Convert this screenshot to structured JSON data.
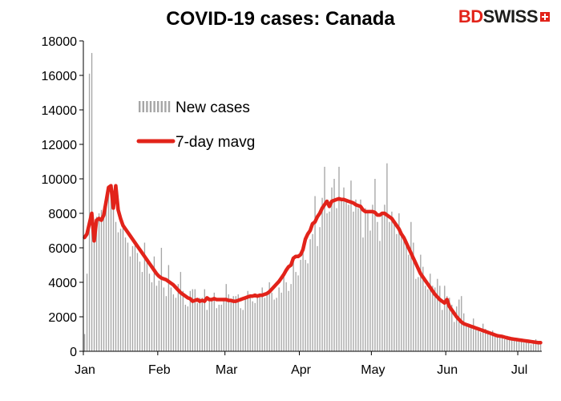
{
  "brand": {
    "part1": "BD",
    "part2": "SWISS"
  },
  "chart_data": {
    "type": "bar",
    "title": "COVID-19 cases: Canada",
    "xlabel": "",
    "ylabel": "",
    "ylim": [
      0,
      18000
    ],
    "yticks": [
      0,
      2000,
      4000,
      6000,
      8000,
      10000,
      12000,
      14000,
      16000,
      18000
    ],
    "xticks": [
      {
        "label": "Jan",
        "day": 0
      },
      {
        "label": "Feb",
        "day": 31
      },
      {
        "label": "Mar",
        "day": 59
      },
      {
        "label": "Apr",
        "day": 90
      },
      {
        "label": "May",
        "day": 120
      },
      {
        "label": "Jun",
        "day": 151
      },
      {
        "label": "Jul",
        "day": 181
      }
    ],
    "grid": false,
    "legend_position": "top-left",
    "series": [
      {
        "name": "New cases",
        "type": "bar",
        "color": "#a6a6a6",
        "values": [
          1000,
          4500,
          16100,
          17300,
          6500,
          7800,
          8000,
          8200,
          8400,
          9000,
          9500,
          9600,
          8200,
          7500,
          6900,
          7100,
          7300,
          6600,
          6300,
          5500,
          6100,
          6200,
          5700,
          5200,
          4600,
          6300,
          5200,
          4500,
          4000,
          5500,
          3800,
          4100,
          6000,
          3700,
          3200,
          5000,
          3700,
          3300,
          3100,
          3900,
          4600,
          3500,
          2700,
          2600,
          3500,
          3600,
          3600,
          2800,
          3100,
          3100,
          3600,
          2400,
          2900,
          3000,
          3400,
          2500,
          2700,
          2700,
          3000,
          3900,
          3300,
          2900,
          3200,
          3200,
          3300,
          2500,
          2400,
          3000,
          3500,
          3200,
          2900,
          2800,
          3100,
          3200,
          3700,
          3100,
          3300,
          4000,
          3400,
          3000,
          3100,
          3700,
          3400,
          4500,
          4000,
          3500,
          3900,
          5400,
          4600,
          4400,
          5300,
          6200,
          5300,
          5100,
          6500,
          6800,
          9000,
          6100,
          7200,
          8900,
          10700,
          8000,
          8100,
          9500,
          10000,
          8300,
          10700,
          8800,
          9500,
          8800,
          8500,
          9900,
          8100,
          8800,
          8300,
          8800,
          6600,
          8300,
          8000,
          7000,
          8500,
          10000,
          7500,
          6400,
          7900,
          8500,
          10900,
          7500,
          8100,
          7500,
          6800,
          8000,
          6900,
          6600,
          6500,
          5600,
          7500,
          6300,
          4200,
          4300,
          5600,
          4900,
          3800,
          3600,
          4500,
          3800,
          3700,
          4200,
          3800,
          2400,
          3800,
          3200,
          3100,
          2700,
          1700,
          2600,
          3000,
          3200,
          2200,
          1600,
          1500,
          1400,
          1900,
          1400,
          1200,
          1100,
          1600,
          1300,
          1100,
          1000,
          1200,
          1000,
          1000,
          900,
          900,
          700,
          900,
          800,
          700,
          700,
          600,
          600,
          700,
          500,
          500,
          600,
          400,
          500,
          700,
          400,
          400
        ]
      },
      {
        "name": "7-day mavg",
        "type": "line",
        "color": "#e2231a",
        "values": [
          6600,
          6800,
          7400,
          8000,
          6400,
          7600,
          7700,
          7600,
          7900,
          8700,
          9500,
          9600,
          8300,
          9600,
          8200,
          7700,
          7300,
          7100,
          6900,
          6700,
          6500,
          6300,
          6100,
          5900,
          5700,
          5500,
          5300,
          5100,
          4900,
          4700,
          4500,
          4350,
          4250,
          4200,
          4150,
          4050,
          3950,
          3850,
          3700,
          3550,
          3400,
          3300,
          3200,
          3100,
          3050,
          2900,
          2950,
          3000,
          2900,
          2950,
          2900,
          3100,
          3000,
          3000,
          3050,
          3000,
          3000,
          3000,
          3000,
          3000,
          2950,
          2950,
          2900,
          2900,
          2950,
          3000,
          3050,
          3100,
          3150,
          3200,
          3200,
          3250,
          3200,
          3250,
          3250,
          3300,
          3350,
          3450,
          3600,
          3750,
          3900,
          4050,
          4250,
          4450,
          4700,
          4900,
          5000,
          5400,
          5500,
          5500,
          5600,
          5900,
          6500,
          6800,
          7000,
          7400,
          7500,
          7800,
          8000,
          8300,
          8500,
          8700,
          8400,
          8700,
          8750,
          8800,
          8850,
          8800,
          8800,
          8750,
          8700,
          8650,
          8600,
          8500,
          8450,
          8400,
          8200,
          8100,
          8100,
          8100,
          8100,
          8050,
          7900,
          7900,
          8000,
          8000,
          7900,
          7800,
          7700,
          7500,
          7300,
          7100,
          6800,
          6600,
          6300,
          6000,
          5700,
          5400,
          5100,
          4800,
          4500,
          4300,
          4100,
          3900,
          3700,
          3500,
          3300,
          3150,
          3000,
          2900,
          2800,
          3000,
          2600,
          2400,
          2200,
          2000,
          1850,
          1700,
          1600,
          1550,
          1500,
          1450,
          1400,
          1350,
          1300,
          1250,
          1200,
          1150,
          1100,
          1050,
          1000,
          950,
          900,
          880,
          860,
          820,
          780,
          750,
          720,
          700,
          680,
          660,
          640,
          620,
          600,
          580,
          560,
          540,
          520,
          500,
          500
        ]
      }
    ]
  }
}
